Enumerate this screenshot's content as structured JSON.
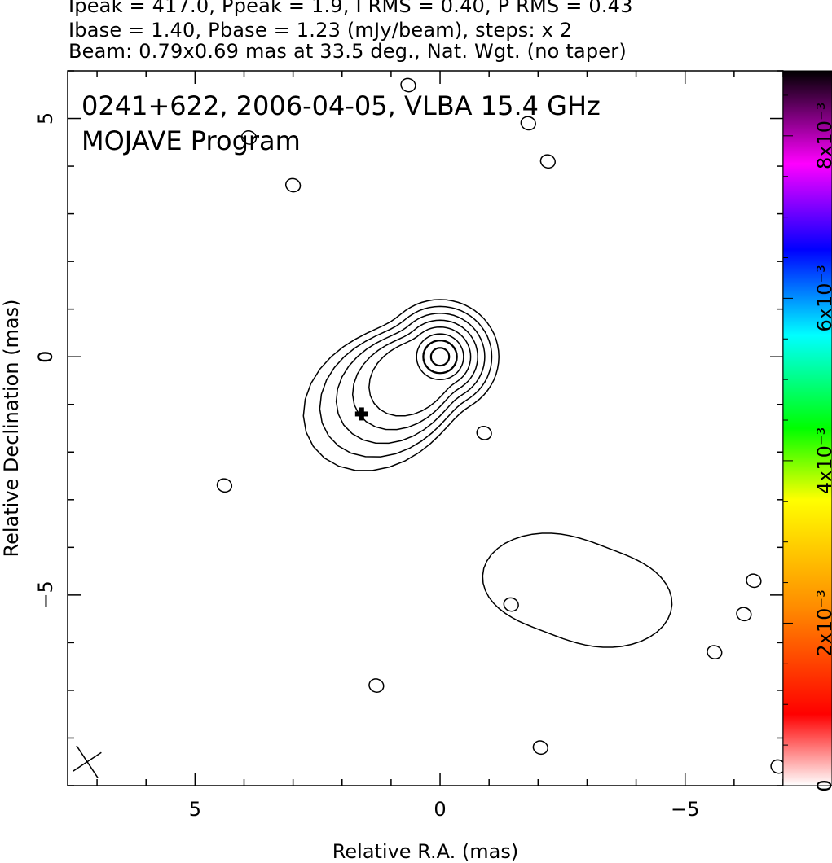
{
  "header": {
    "line1": "Ipeak = 417.0, Ppeak = 1.9, I RMS = 0.40, P RMS = 0.43",
    "line2": "Ibase = 1.40, Pbase = 1.23 (mJy/beam), steps: x 2",
    "line3": "Beam: 0.79x0.69 mas at 33.5 deg., Nat. Wgt. (no taper)"
  },
  "chart_data": {
    "type": "contour",
    "title": "0241+622, 2006-04-05, VLBA 15.4 GHz",
    "subtitle": "MOJAVE Program",
    "xlabel": "Relative R.A. (mas)",
    "ylabel": "Relative Declination (mas)",
    "xlim": [
      7.6,
      -7.0
    ],
    "ylim": [
      -9.0,
      6.0
    ],
    "x_ticks": [
      5,
      0,
      -5
    ],
    "x_tick_labels": [
      "5",
      "0",
      "−5"
    ],
    "y_ticks": [
      5,
      0,
      -5
    ],
    "y_tick_labels": [
      "5",
      "0",
      "−5"
    ],
    "colorbar": {
      "tick_labels": [
        "0",
        "2x10⁻³",
        "4x10⁻³",
        "6x10⁻³",
        "8x10⁻³"
      ],
      "tick_values": [
        0,
        0.002,
        0.004,
        0.006,
        0.008
      ],
      "max": 0.0088,
      "colors": [
        "#ffffff",
        "#ff0000",
        "#ff8c00",
        "#ffff00",
        "#00ff00",
        "#00ffff",
        "#0000ff",
        "#ff00ff",
        "#000000"
      ]
    },
    "peak_marker": {
      "x": 1.6,
      "y": -1.2,
      "symbol": "cross"
    },
    "core": {
      "center": [
        0.0,
        0.0
      ],
      "levels": 8,
      "base_level_mJy": 1.4,
      "step_factor": 2
    },
    "extended_component": {
      "center": [
        -2.8,
        -4.9
      ]
    },
    "beam": {
      "major_mas": 0.79,
      "minor_mas": 0.69,
      "pa_deg": 33.5,
      "position": [
        7.2,
        -8.5
      ]
    }
  }
}
